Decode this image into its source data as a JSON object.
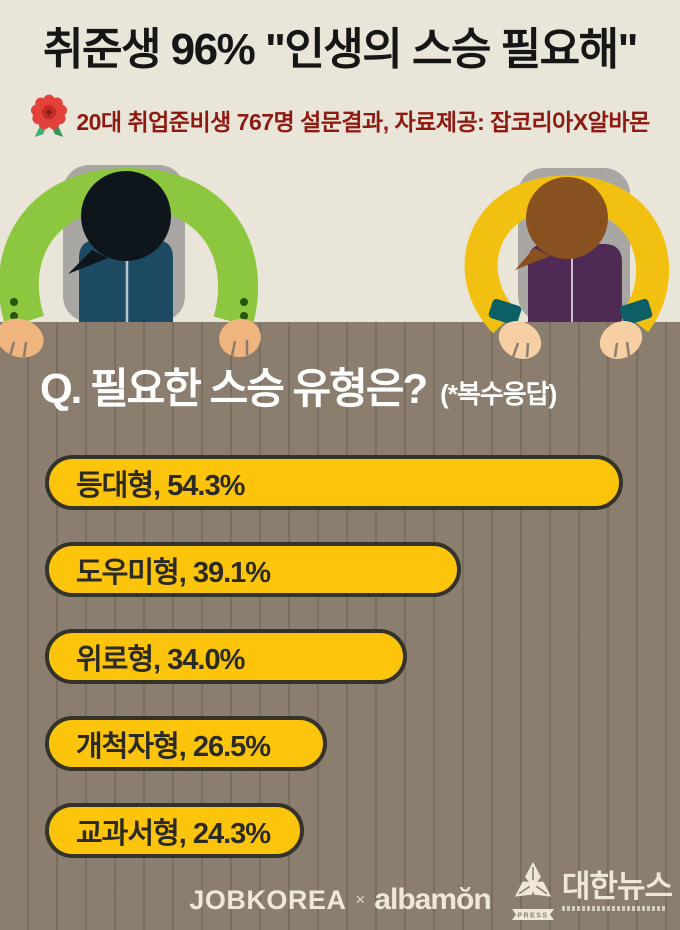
{
  "colors": {
    "background_cream": "#eae5d9",
    "table_wood": "#8b7e6f",
    "bar_fill": "#fcc40a",
    "bar_border": "#33332a",
    "title_text": "#161616",
    "subtitle_red": "#8e1b12",
    "question_white": "#ffffff",
    "footer_cream": "#efe8d6",
    "left_jacket_green": "#8dc63f",
    "left_body_navy": "#1d4a63",
    "right_jacket_yellow": "#f2c011",
    "right_body_purple": "#4e2a55",
    "rosette_red": "#e2423a",
    "ribbon_green": "#3fae6e"
  },
  "header": {
    "title": "취준생 96% \"인생의 스승 필요해\"",
    "subtitle": "20대 취업준비생 767명 설문결과, 자료제공: 잡코리아X알바몬"
  },
  "question": {
    "label": "Q. 필요한 스승 유형은?",
    "note": "(*복수응답)"
  },
  "chart_data": {
    "type": "bar",
    "orientation": "horizontal",
    "title": "Q. 필요한 스승 유형은?",
    "note": "(*복수응답)",
    "categories": [
      "등대형",
      "도우미형",
      "위로형",
      "개척자형",
      "교과서형"
    ],
    "values": [
      54.3,
      39.1,
      34.0,
      26.5,
      24.3
    ],
    "unit": "%",
    "label_format": "{category}, {value}%",
    "xlim": [
      0,
      57
    ],
    "bar_color": "#fcc40a",
    "bar_border_color": "#33332a",
    "grid": false,
    "legend": false
  },
  "footer": {
    "jobkorea": "JOBKOREA",
    "separator": "×",
    "albamon": "albamŏn",
    "news_name": "대한뉴스",
    "press_label": "PRESS"
  }
}
